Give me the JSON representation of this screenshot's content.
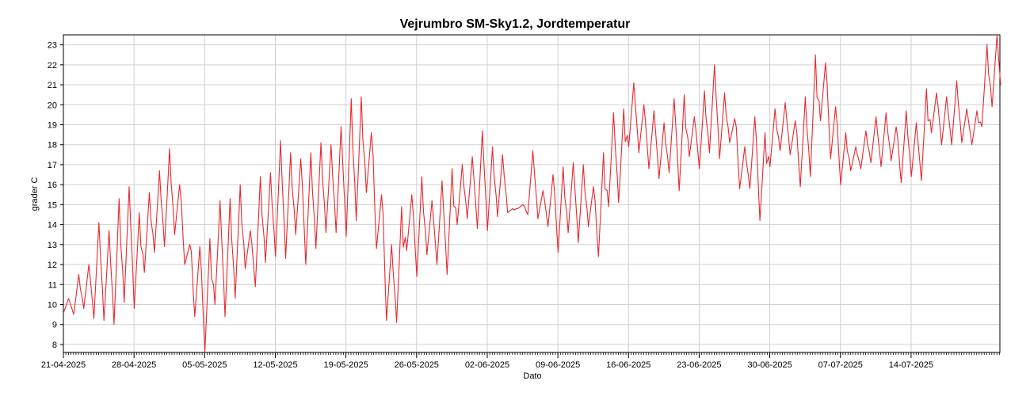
{
  "chart_data": {
    "type": "line",
    "title": "Vejrumbro SM-Sky1.2, Jordtemperatur",
    "xlabel": "Dato",
    "ylabel": "grader C",
    "x_tick_labels": [
      "21-04-2025",
      "28-04-2025",
      "05-05-2025",
      "12-05-2025",
      "19-05-2025",
      "26-05-2025",
      "02-06-2025",
      "09-06-2025",
      "16-06-2025",
      "23-06-2025",
      "30-06-2025",
      "07-07-2025",
      "14-07-2025"
    ],
    "xlim": [
      "2025-04-21",
      "2025-07-22"
    ],
    "y_ticks": [
      8,
      9,
      10,
      11,
      12,
      13,
      14,
      15,
      16,
      17,
      18,
      19,
      20,
      21,
      22,
      23
    ],
    "ylim": [
      7.6,
      23.5
    ],
    "grid": true,
    "legend": "none",
    "series_color": "#e8282e",
    "series": [
      {
        "daily_range": [
          [
            "2025-04-21",
            9.6,
            10.3
          ],
          [
            "2025-04-22",
            9.5,
            11.5
          ],
          [
            "2025-04-23",
            9.8,
            12.0
          ],
          [
            "2025-04-24",
            9.3,
            14.1
          ],
          [
            "2025-04-25",
            9.2,
            13.7
          ],
          [
            "2025-04-26",
            9.0,
            15.3
          ],
          [
            "2025-04-27",
            10.1,
            15.9
          ],
          [
            "2025-04-28",
            9.8,
            14.6
          ],
          [
            "2025-04-29",
            11.6,
            15.6
          ],
          [
            "2025-04-30",
            12.6,
            16.7
          ],
          [
            "2025-05-01",
            12.9,
            17.8
          ],
          [
            "2025-05-02",
            13.5,
            16.0
          ],
          [
            "2025-05-03",
            12.0,
            13.0
          ],
          [
            "2025-05-04",
            9.4,
            12.9
          ],
          [
            "2025-05-05",
            7.6,
            13.3
          ],
          [
            "2025-05-06",
            10.0,
            15.2
          ],
          [
            "2025-05-07",
            9.4,
            15.3
          ],
          [
            "2025-05-08",
            10.3,
            16.0
          ],
          [
            "2025-05-09",
            11.8,
            13.7
          ],
          [
            "2025-05-10",
            10.9,
            16.4
          ],
          [
            "2025-05-11",
            12.1,
            16.6
          ],
          [
            "2025-05-12",
            12.4,
            18.2
          ],
          [
            "2025-05-13",
            12.3,
            17.6
          ],
          [
            "2025-05-14",
            13.5,
            17.3
          ],
          [
            "2025-05-15",
            12.0,
            17.6
          ],
          [
            "2025-05-16",
            12.8,
            18.1
          ],
          [
            "2025-05-17",
            13.6,
            18.0
          ],
          [
            "2025-05-18",
            13.6,
            18.9
          ],
          [
            "2025-05-19",
            13.4,
            20.3
          ],
          [
            "2025-05-20",
            14.2,
            20.4
          ],
          [
            "2025-05-21",
            15.6,
            18.6
          ],
          [
            "2025-05-22",
            12.8,
            15.5
          ],
          [
            "2025-05-23",
            9.2,
            13.0
          ],
          [
            "2025-05-24",
            9.1,
            14.9
          ],
          [
            "2025-05-25",
            12.7,
            15.5
          ],
          [
            "2025-05-26",
            11.4,
            16.4
          ],
          [
            "2025-05-27",
            12.5,
            15.2
          ],
          [
            "2025-05-28",
            12.0,
            16.2
          ],
          [
            "2025-05-29",
            11.5,
            16.8
          ],
          [
            "2025-05-30",
            14.0,
            17.0
          ],
          [
            "2025-05-31",
            14.3,
            17.4
          ],
          [
            "2025-06-01",
            13.8,
            18.7
          ],
          [
            "2025-06-02",
            13.7,
            17.9
          ],
          [
            "2025-06-03",
            14.4,
            17.5
          ],
          [
            "2025-06-04",
            14.6,
            14.8
          ],
          [
            "2025-06-05",
            14.8,
            15.0
          ],
          [
            "2025-06-06",
            14.5,
            17.7
          ],
          [
            "2025-06-07",
            14.3,
            15.7
          ],
          [
            "2025-06-08",
            13.9,
            16.5
          ],
          [
            "2025-06-09",
            12.6,
            16.9
          ],
          [
            "2025-06-10",
            13.6,
            17.1
          ],
          [
            "2025-06-11",
            13.1,
            17.0
          ],
          [
            "2025-06-12",
            13.9,
            15.9
          ],
          [
            "2025-06-13",
            12.4,
            17.6
          ],
          [
            "2025-06-14",
            14.9,
            19.6
          ],
          [
            "2025-06-15",
            15.1,
            19.8
          ],
          [
            "2025-06-16",
            17.9,
            21.1
          ],
          [
            "2025-06-17",
            17.6,
            20.0
          ],
          [
            "2025-06-18",
            16.8,
            19.7
          ],
          [
            "2025-06-19",
            16.3,
            19.1
          ],
          [
            "2025-06-20",
            16.6,
            20.3
          ],
          [
            "2025-06-21",
            15.7,
            20.5
          ],
          [
            "2025-06-22",
            17.4,
            19.4
          ],
          [
            "2025-06-23",
            16.8,
            20.7
          ],
          [
            "2025-06-24",
            17.6,
            22.0
          ],
          [
            "2025-06-25",
            17.3,
            20.6
          ],
          [
            "2025-06-26",
            18.1,
            19.3
          ],
          [
            "2025-06-27",
            15.8,
            17.9
          ],
          [
            "2025-06-28",
            15.8,
            19.4
          ],
          [
            "2025-06-29",
            14.2,
            18.6
          ],
          [
            "2025-06-30",
            16.9,
            19.8
          ],
          [
            "2025-07-01",
            17.7,
            20.1
          ],
          [
            "2025-07-02",
            17.5,
            19.2
          ],
          [
            "2025-07-03",
            15.9,
            20.4
          ],
          [
            "2025-07-04",
            16.4,
            22.5
          ],
          [
            "2025-07-05",
            19.2,
            22.1
          ],
          [
            "2025-07-06",
            17.3,
            19.9
          ],
          [
            "2025-07-07",
            16.0,
            18.6
          ],
          [
            "2025-07-08",
            16.7,
            17.9
          ],
          [
            "2025-07-09",
            16.8,
            18.7
          ],
          [
            "2025-07-10",
            17.1,
            19.4
          ],
          [
            "2025-07-11",
            16.9,
            19.6
          ],
          [
            "2025-07-12",
            17.2,
            18.9
          ],
          [
            "2025-07-13",
            16.1,
            19.7
          ],
          [
            "2025-07-14",
            16.4,
            19.1
          ],
          [
            "2025-07-15",
            16.2,
            20.8
          ],
          [
            "2025-07-16",
            18.6,
            20.6
          ],
          [
            "2025-07-17",
            18.0,
            20.4
          ],
          [
            "2025-07-18",
            18.0,
            21.2
          ],
          [
            "2025-07-19",
            18.1,
            19.8
          ],
          [
            "2025-07-20",
            18.0,
            19.7
          ],
          [
            "2025-07-21",
            18.9,
            23.0
          ],
          [
            "2025-07-22",
            19.9,
            23.5
          ]
        ]
      }
    ]
  }
}
